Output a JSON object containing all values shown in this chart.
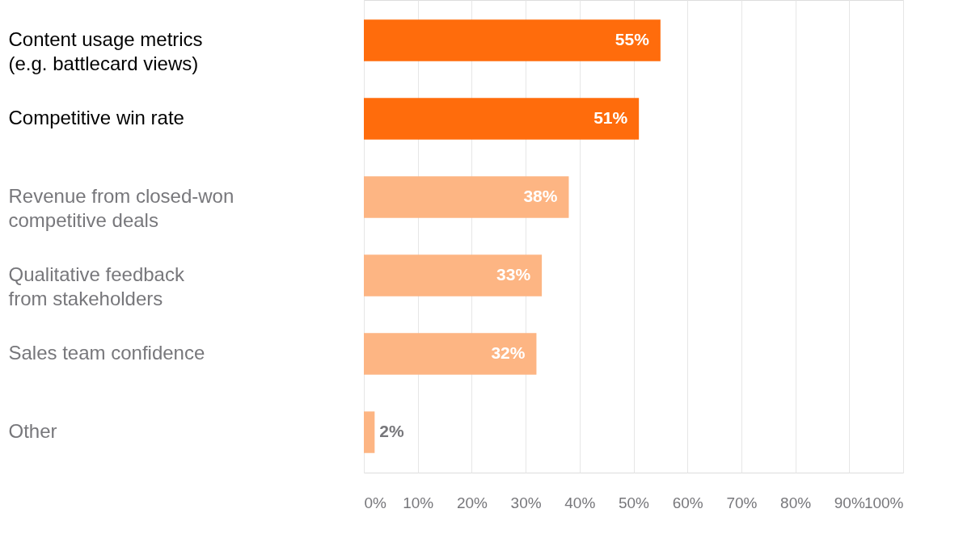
{
  "chart_data": {
    "type": "bar",
    "orientation": "horizontal",
    "categories": [
      "Content usage metrics\n(e.g. battlecard views)",
      "Competitive win rate",
      "Revenue from closed-won\ncompetitive deals",
      "Qualitative feedback\nfrom stakeholders",
      "Sales team confidence",
      "Other"
    ],
    "values": [
      55,
      51,
      38,
      33,
      32,
      2
    ],
    "colors": [
      "#ff6c0c",
      "#ff6c0c",
      "#fdb583",
      "#fdb583",
      "#fdb583",
      "#fdb583"
    ],
    "value_labels": [
      "55%",
      "51%",
      "38%",
      "33%",
      "32%",
      "2%"
    ],
    "xlim": [
      0,
      100
    ],
    "xticks": [
      {
        "value": 0,
        "label": "0%"
      },
      {
        "value": 10,
        "label": "10%"
      },
      {
        "value": 20,
        "label": "20%"
      },
      {
        "value": 30,
        "label": "30%"
      },
      {
        "value": 40,
        "label": "40%"
      },
      {
        "value": 50,
        "label": "50%"
      },
      {
        "value": 60,
        "label": "60%"
      },
      {
        "value": 70,
        "label": "70%"
      },
      {
        "value": 80,
        "label": "80%"
      },
      {
        "value": 90,
        "label": "90%"
      },
      {
        "value": 100,
        "label": "100%"
      }
    ],
    "grid": "x"
  }
}
